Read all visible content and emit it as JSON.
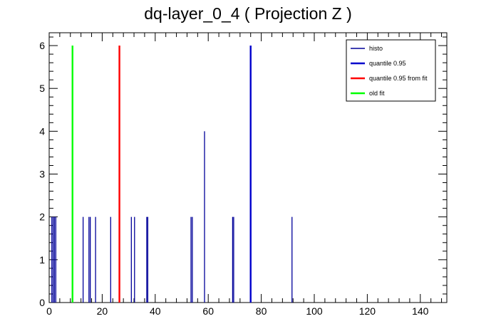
{
  "chart_data": {
    "type": "bar",
    "title": "dq-layer_0_4 ( Projection Z )",
    "xlim": [
      0,
      150
    ],
    "ylim": [
      0,
      6.3
    ],
    "x_ticks": [
      0,
      20,
      40,
      60,
      80,
      100,
      120,
      140
    ],
    "y_ticks": [
      0,
      1,
      2,
      3,
      4,
      5,
      6
    ],
    "grid": false,
    "legend_position": "top-right",
    "histogram": {
      "name": "histo",
      "color": "#000099",
      "bins": [
        {
          "x": 1.0,
          "y": 2
        },
        {
          "x": 1.5,
          "y": 2
        },
        {
          "x": 2.0,
          "y": 2
        },
        {
          "x": 2.5,
          "y": 2
        },
        {
          "x": 12.8,
          "y": 2
        },
        {
          "x": 15.0,
          "y": 2
        },
        {
          "x": 15.5,
          "y": 2
        },
        {
          "x": 17.5,
          "y": 2
        },
        {
          "x": 23.2,
          "y": 2
        },
        {
          "x": 31.0,
          "y": 2
        },
        {
          "x": 32.2,
          "y": 2
        },
        {
          "x": 36.8,
          "y": 2
        },
        {
          "x": 37.2,
          "y": 2
        },
        {
          "x": 53.5,
          "y": 2
        },
        {
          "x": 54.0,
          "y": 2
        },
        {
          "x": 58.6,
          "y": 4
        },
        {
          "x": 69.2,
          "y": 2
        },
        {
          "x": 69.6,
          "y": 2
        },
        {
          "x": 76.0,
          "y": 6
        },
        {
          "x": 91.6,
          "y": 2
        }
      ]
    },
    "lines": [
      {
        "name": "quantile 0.95",
        "x": 76.0,
        "y": 6,
        "color": "#0000cc"
      },
      {
        "name": "quantile 0.95 from fit",
        "x": 26.5,
        "y": 6,
        "color": "#ff0000"
      },
      {
        "name": "old fit",
        "x": 8.8,
        "y": 6,
        "color": "#00ff00"
      }
    ],
    "legend": [
      {
        "label": "histo",
        "color": "#000099",
        "width": 1
      },
      {
        "label": "quantile 0.95",
        "color": "#0000cc",
        "width": 2
      },
      {
        "label": "quantile 0.95 from fit",
        "color": "#ff0000",
        "width": 2
      },
      {
        "label": "old fit",
        "color": "#00ff00",
        "width": 2
      }
    ]
  }
}
